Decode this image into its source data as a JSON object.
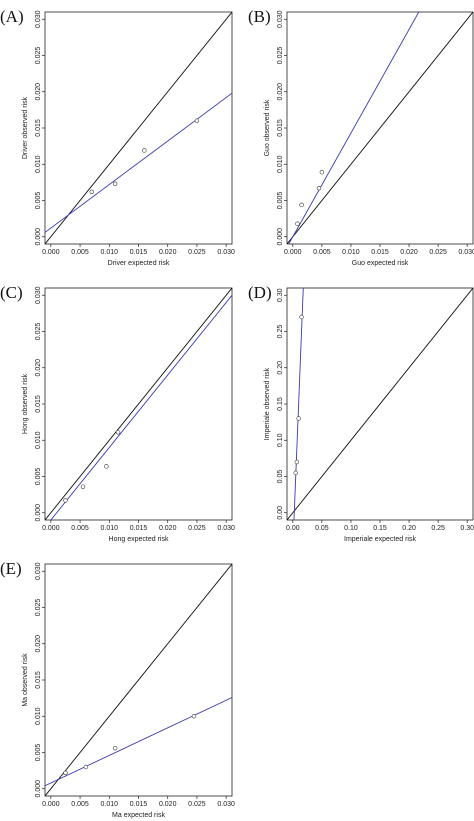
{
  "chart_data": [
    {
      "type": "scatter",
      "panel": "(A)",
      "xlabel": "Driver expected risk",
      "ylabel": "Driver observed risk",
      "xlim": [
        -0.001,
        0.031
      ],
      "ylim": [
        -0.001,
        0.031
      ],
      "xticks": [
        "0.000",
        "0.005",
        "0.010",
        "0.015",
        "0.020",
        "0.025",
        "0.030"
      ],
      "yticks": [
        "0.000",
        "0.005",
        "0.010",
        "0.015",
        "0.020",
        "0.025",
        "0.030"
      ],
      "points": [
        [
          0.007,
          0.0062
        ],
        [
          0.011,
          0.0073
        ],
        [
          0.016,
          0.0119
        ],
        [
          0.025,
          0.016
        ]
      ],
      "identity_line": true,
      "fit_line": {
        "intercept": 0.0012,
        "slope": 0.6
      },
      "colors": {
        "fit": "#3b3bb3",
        "identity": "#111111"
      }
    },
    {
      "type": "scatter",
      "panel": "(B)",
      "xlabel": "Guo expected risk",
      "ylabel": "Guo observed risk",
      "xlim": [
        -0.001,
        0.031
      ],
      "ylim": [
        -0.001,
        0.031
      ],
      "xticks": [
        "0.000",
        "0.005",
        "0.010",
        "0.015",
        "0.020",
        "0.025",
        "0.030"
      ],
      "yticks": [
        "0.000",
        "0.005",
        "0.010",
        "0.015",
        "0.020",
        "0.025",
        "0.030"
      ],
      "points": [
        [
          0.0008,
          0.0018
        ],
        [
          0.0015,
          0.0044
        ],
        [
          0.0045,
          0.0067
        ],
        [
          0.005,
          0.0089
        ]
      ],
      "identity_line": true,
      "fit_line": {
        "intercept": 0.0,
        "slope": 1.43
      },
      "colors": {
        "fit": "#3b3bb3",
        "identity": "#111111"
      }
    },
    {
      "type": "scatter",
      "panel": "(C)",
      "xlabel": "Hong expected risk",
      "ylabel": "Hong observed risk",
      "xlim": [
        -0.001,
        0.031
      ],
      "ylim": [
        -0.001,
        0.031
      ],
      "xticks": [
        "0.000",
        "0.005",
        "0.010",
        "0.015",
        "0.020",
        "0.025",
        "0.030"
      ],
      "yticks": [
        "0.000",
        "0.005",
        "0.010",
        "0.015",
        "0.020",
        "0.025",
        "0.030"
      ],
      "points": [
        [
          0.0025,
          0.0017
        ],
        [
          0.0055,
          0.0036
        ],
        [
          0.0095,
          0.0064
        ],
        [
          0.0115,
          0.0111
        ]
      ],
      "identity_line": true,
      "fit_line": {
        "intercept": -0.001,
        "slope": 1.0
      },
      "colors": {
        "fit": "#3b3bb3",
        "identity": "#111111"
      }
    },
    {
      "type": "scatter",
      "panel": "(D)",
      "xlabel": "Imperiale expected risk",
      "ylabel": "Imperiale observed risk",
      "xlim": [
        -0.01,
        0.31
      ],
      "ylim": [
        -0.01,
        0.31
      ],
      "xticks": [
        "0.00",
        "0.05",
        "0.10",
        "0.15",
        "0.20",
        "0.25",
        "0.30"
      ],
      "yticks": [
        "0.00",
        "0.05",
        "0.10",
        "0.15",
        "0.20",
        "0.25",
        "0.30"
      ],
      "points": [
        [
          0.005,
          0.055
        ],
        [
          0.007,
          0.07
        ],
        [
          0.01,
          0.13
        ],
        [
          0.015,
          0.27
        ]
      ],
      "identity_line": true,
      "fit_line": {
        "intercept": -0.05,
        "slope": 20.0
      },
      "colors": {
        "fit": "#3b3bb3",
        "identity": "#111111"
      }
    },
    {
      "type": "scatter",
      "panel": "(E)",
      "xlabel": "Ma expected risk",
      "ylabel": "Ma observed risk",
      "xlim": [
        -0.001,
        0.031
      ],
      "ylim": [
        -0.001,
        0.031
      ],
      "xticks": [
        "0.000",
        "0.005",
        "0.010",
        "0.015",
        "0.020",
        "0.025",
        "0.030"
      ],
      "yticks": [
        "0.000",
        "0.005",
        "0.010",
        "0.015",
        "0.020",
        "0.025",
        "0.030"
      ],
      "points": [
        [
          0.0025,
          0.0022
        ],
        [
          0.006,
          0.003
        ],
        [
          0.011,
          0.0056
        ],
        [
          0.0245,
          0.01
        ]
      ],
      "identity_line": true,
      "fit_line": {
        "intercept": 0.0008,
        "slope": 0.38
      },
      "colors": {
        "fit": "#3b3bb3",
        "identity": "#111111"
      }
    }
  ]
}
